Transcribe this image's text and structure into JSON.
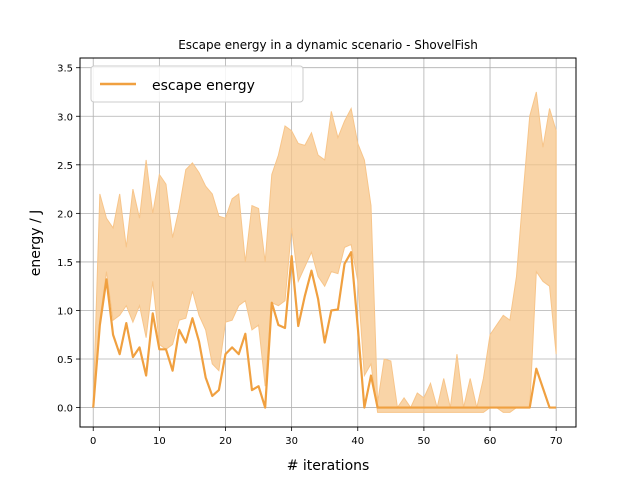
{
  "chart_data": {
    "type": "line",
    "title": "Escape energy in a dynamic scenario - ShovelFish",
    "xlabel": "# iterations",
    "ylabel": "energy / J",
    "xlim": [
      -2,
      73
    ],
    "ylim": [
      -0.2,
      3.6
    ],
    "xticks": [
      0,
      10,
      20,
      30,
      40,
      50,
      60,
      70
    ],
    "yticks": [
      0.0,
      0.5,
      1.0,
      1.5,
      2.0,
      2.5,
      3.0,
      3.5
    ],
    "grid": true,
    "legend_position": "top-left",
    "color": "#f0a040",
    "band_color": "#f7c58a",
    "series": [
      {
        "name": "escape energy",
        "x": [
          0,
          1,
          2,
          3,
          4,
          5,
          6,
          7,
          8,
          9,
          10,
          11,
          12,
          13,
          14,
          15,
          16,
          17,
          18,
          19,
          20,
          21,
          22,
          23,
          24,
          25,
          26,
          27,
          28,
          29,
          30,
          31,
          32,
          33,
          34,
          35,
          36,
          37,
          38,
          39,
          40,
          41,
          42,
          43,
          44,
          45,
          46,
          47,
          48,
          49,
          50,
          51,
          52,
          53,
          54,
          55,
          56,
          57,
          58,
          59,
          60,
          61,
          62,
          63,
          64,
          65,
          66,
          67,
          68,
          69,
          70
        ],
        "values": [
          0.0,
          0.85,
          1.32,
          0.75,
          0.55,
          0.87,
          0.52,
          0.62,
          0.33,
          0.97,
          0.6,
          0.6,
          0.38,
          0.8,
          0.67,
          0.92,
          0.68,
          0.31,
          0.12,
          0.18,
          0.55,
          0.62,
          0.55,
          0.76,
          0.18,
          0.22,
          0.0,
          1.08,
          0.85,
          0.82,
          1.56,
          0.84,
          1.15,
          1.41,
          1.12,
          0.67,
          1.0,
          1.01,
          1.48,
          1.6,
          0.83,
          0.0,
          0.33,
          0.0,
          0.0,
          0.0,
          0.0,
          0.0,
          0.0,
          0.0,
          0.0,
          0.0,
          0.0,
          0.0,
          0.0,
          0.0,
          0.0,
          0.0,
          0.0,
          0.0,
          0.0,
          0.0,
          0.0,
          0.0,
          0.0,
          0.0,
          0.0,
          0.4,
          0.2,
          0.0,
          0.0
        ],
        "lower": [
          0.0,
          0.9,
          1.4,
          0.9,
          0.95,
          1.05,
          0.88,
          1.05,
          0.72,
          1.3,
          0.65,
          0.6,
          0.65,
          0.9,
          0.92,
          1.2,
          0.95,
          0.8,
          0.45,
          0.38,
          0.88,
          0.9,
          1.05,
          1.1,
          0.8,
          0.85,
          0.22,
          1.08,
          1.05,
          1.1,
          1.85,
          1.3,
          1.45,
          1.6,
          1.35,
          1.25,
          1.4,
          1.38,
          1.65,
          1.68,
          1.3,
          0.33,
          0.45,
          -0.05,
          -0.05,
          -0.05,
          -0.05,
          -0.05,
          -0.05,
          -0.05,
          -0.05,
          -0.05,
          -0.05,
          -0.05,
          -0.05,
          -0.05,
          -0.05,
          -0.05,
          -0.05,
          -0.05,
          0.0,
          0.0,
          -0.05,
          -0.05,
          0.0,
          0.0,
          0.0,
          1.4,
          1.3,
          1.25,
          0.55
        ],
        "upper": [
          0.05,
          2.2,
          1.95,
          1.85,
          2.2,
          1.65,
          2.25,
          1.95,
          2.55,
          2.0,
          2.4,
          2.3,
          1.75,
          2.05,
          2.45,
          2.52,
          2.42,
          2.28,
          2.2,
          1.97,
          1.95,
          2.15,
          2.2,
          1.5,
          2.08,
          2.05,
          1.5,
          2.4,
          2.6,
          2.9,
          2.85,
          2.72,
          2.7,
          2.83,
          2.6,
          2.55,
          3.05,
          2.78,
          2.95,
          3.08,
          2.72,
          2.55,
          2.08,
          0.05,
          0.5,
          0.48,
          0.0,
          0.1,
          0.0,
          0.15,
          0.1,
          0.25,
          0.0,
          0.3,
          0.0,
          0.55,
          0.0,
          0.3,
          0.0,
          0.3,
          0.75,
          0.85,
          0.95,
          0.9,
          1.35,
          2.2,
          3.0,
          3.25,
          2.68,
          3.08,
          2.85
        ]
      }
    ]
  }
}
